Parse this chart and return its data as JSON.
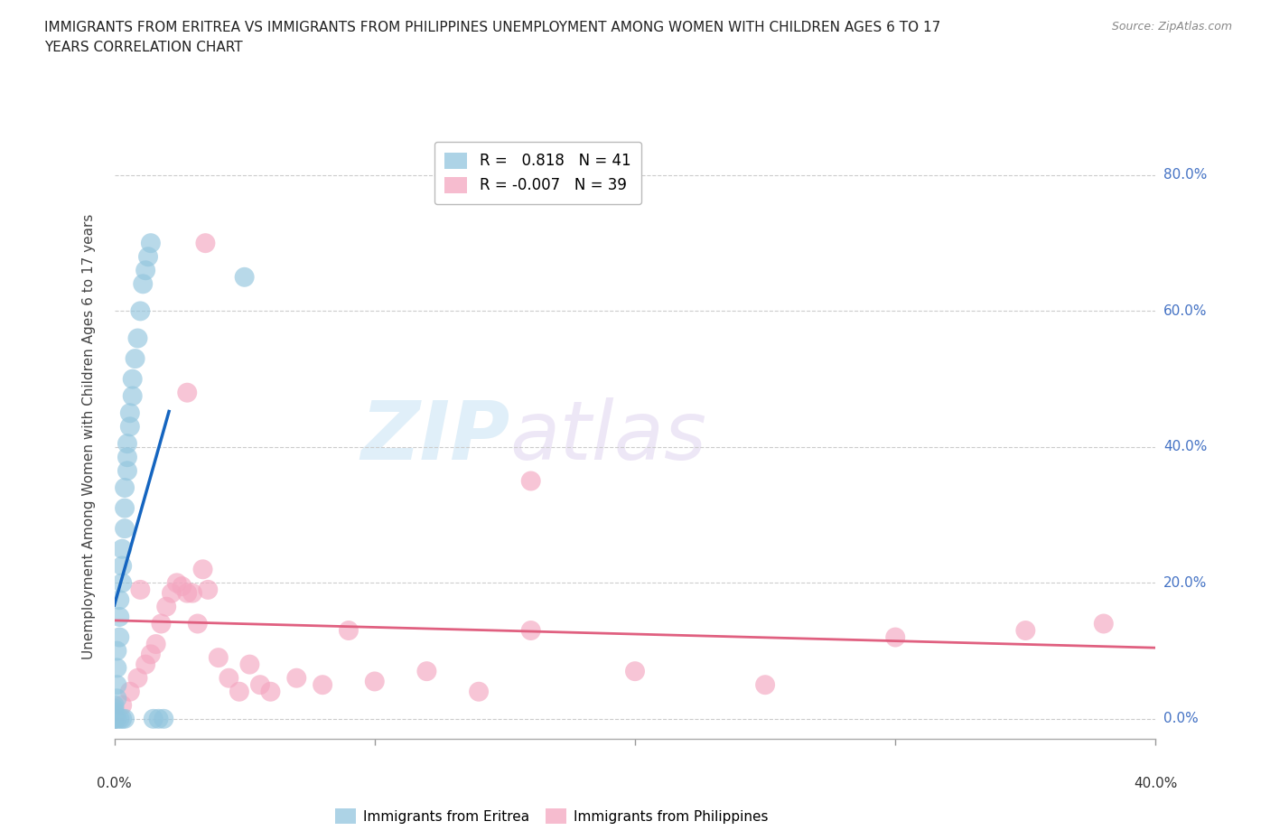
{
  "title_line1": "IMMIGRANTS FROM ERITREA VS IMMIGRANTS FROM PHILIPPINES UNEMPLOYMENT AMONG WOMEN WITH CHILDREN AGES 6 TO 17",
  "title_line2": "YEARS CORRELATION CHART",
  "source": "Source: ZipAtlas.com",
  "ylabel": "Unemployment Among Women with Children Ages 6 to 17 years",
  "xlim": [
    0.0,
    0.4
  ],
  "ylim": [
    -0.03,
    0.86
  ],
  "yticks": [
    0.0,
    0.2,
    0.4,
    0.6,
    0.8
  ],
  "ytick_labels": [
    "0.0%",
    "20.0%",
    "40.0%",
    "60.0%",
    "80.0%"
  ],
  "R_eritrea": "0.818",
  "N_eritrea": "41",
  "R_philippines": "-0.007",
  "N_philippines": "39",
  "legend_eritrea": "Immigrants from Eritrea",
  "legend_philippines": "Immigrants from Philippines",
  "color_eritrea": "#92c5de",
  "color_philippines": "#f4a6c0",
  "line_color_eritrea": "#1565c0",
  "line_color_philippines": "#e06080",
  "dash_color_eritrea": "#92c5de",
  "eritrea_x": [
    0.0,
    0.0,
    0.0,
    0.0,
    0.0,
    0.001,
    0.001,
    0.001,
    0.001,
    0.002,
    0.002,
    0.002,
    0.003,
    0.003,
    0.003,
    0.004,
    0.004,
    0.004,
    0.005,
    0.005,
    0.005,
    0.006,
    0.006,
    0.007,
    0.007,
    0.008,
    0.009,
    0.01,
    0.011,
    0.012,
    0.013,
    0.014,
    0.015,
    0.017,
    0.019,
    0.0,
    0.001,
    0.002,
    0.003,
    0.004,
    0.05
  ],
  "eritrea_y": [
    0.0,
    0.005,
    0.01,
    0.015,
    0.02,
    0.03,
    0.05,
    0.075,
    0.1,
    0.12,
    0.15,
    0.175,
    0.2,
    0.225,
    0.25,
    0.28,
    0.31,
    0.34,
    0.365,
    0.385,
    0.405,
    0.43,
    0.45,
    0.475,
    0.5,
    0.53,
    0.56,
    0.6,
    0.64,
    0.66,
    0.68,
    0.7,
    0.0,
    0.0,
    0.0,
    0.0,
    0.0,
    0.0,
    0.0,
    0.0,
    0.65
  ],
  "philippines_x": [
    0.0,
    0.003,
    0.006,
    0.009,
    0.012,
    0.014,
    0.016,
    0.018,
    0.02,
    0.022,
    0.024,
    0.026,
    0.028,
    0.03,
    0.032,
    0.034,
    0.036,
    0.04,
    0.044,
    0.048,
    0.052,
    0.056,
    0.06,
    0.07,
    0.08,
    0.09,
    0.1,
    0.12,
    0.14,
    0.16,
    0.2,
    0.25,
    0.3,
    0.35,
    0.38,
    0.028,
    0.035,
    0.01,
    0.16
  ],
  "philippines_y": [
    0.0,
    0.02,
    0.04,
    0.06,
    0.08,
    0.095,
    0.11,
    0.14,
    0.165,
    0.185,
    0.2,
    0.195,
    0.185,
    0.185,
    0.14,
    0.22,
    0.19,
    0.09,
    0.06,
    0.04,
    0.08,
    0.05,
    0.04,
    0.06,
    0.05,
    0.13,
    0.055,
    0.07,
    0.04,
    0.35,
    0.07,
    0.05,
    0.12,
    0.13,
    0.14,
    0.48,
    0.7,
    0.19,
    0.13
  ]
}
